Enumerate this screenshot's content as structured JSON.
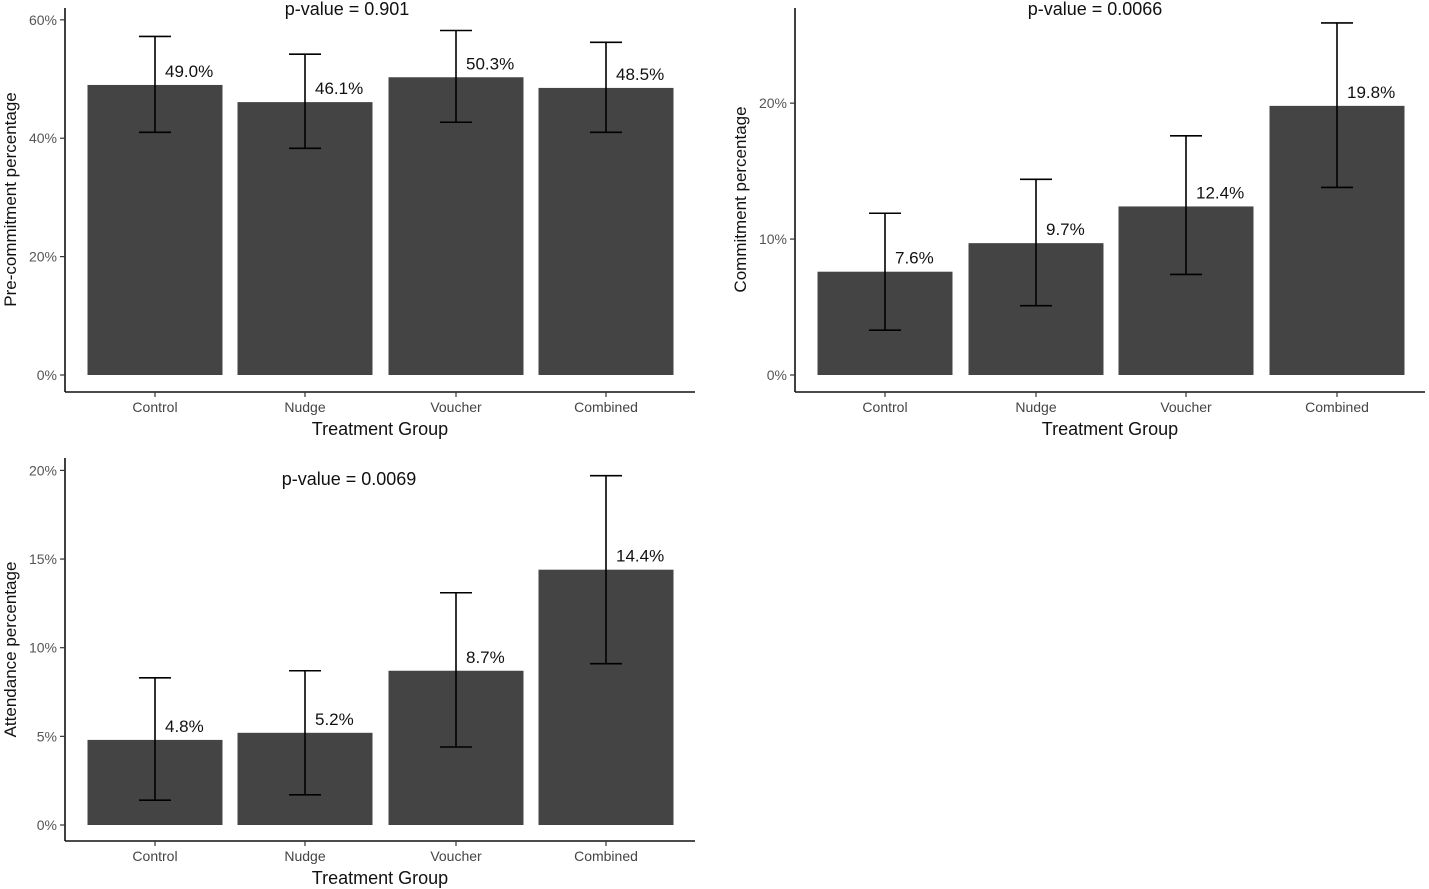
{
  "chart_data": [
    {
      "type": "bar",
      "annotation": "p-value = 0.901",
      "xlabel": "Treatment Group",
      "ylabel": "Pre-commitment percentage",
      "categories": [
        "Control",
        "Nudge",
        "Voucher",
        "Combined"
      ],
      "values": [
        49.0,
        46.1,
        50.3,
        48.5
      ],
      "data_labels": [
        "49.0%",
        "46.1%",
        "50.3%",
        "48.5%"
      ],
      "error_low": [
        41.0,
        38.3,
        42.7,
        41.0
      ],
      "error_high": [
        57.2,
        54.2,
        58.2,
        56.2
      ],
      "yticks": [
        0,
        20,
        40,
        60
      ],
      "ytick_labels": [
        "0%",
        "20%",
        "40%",
        "60%"
      ],
      "ylim": [
        0,
        62
      ],
      "grid": false,
      "bar_color": "#444444"
    },
    {
      "type": "bar",
      "annotation": "p-value = 0.0066",
      "xlabel": "Treatment Group",
      "ylabel": "Commitment percentage",
      "categories": [
        "Control",
        "Nudge",
        "Voucher",
        "Combined"
      ],
      "values": [
        7.6,
        9.7,
        12.4,
        19.8
      ],
      "data_labels": [
        "7.6%",
        "9.7%",
        "12.4%",
        "19.8%"
      ],
      "error_low": [
        3.3,
        5.1,
        7.4,
        13.8
      ],
      "error_high": [
        11.9,
        14.4,
        17.6,
        25.9
      ],
      "yticks": [
        0,
        10,
        20
      ],
      "ytick_labels": [
        "0%",
        "10%",
        "20%"
      ],
      "ylim": [
        0,
        27
      ],
      "grid": false,
      "bar_color": "#444444"
    },
    {
      "type": "bar",
      "annotation": "p-value = 0.0069",
      "xlabel": "Treatment Group",
      "ylabel": "Attendance percentage",
      "categories": [
        "Control",
        "Nudge",
        "Voucher",
        "Combined"
      ],
      "values": [
        4.8,
        5.2,
        8.7,
        14.4
      ],
      "data_labels": [
        "4.8%",
        "5.2%",
        "8.7%",
        "14.4%"
      ],
      "error_low": [
        1.4,
        1.7,
        4.4,
        9.1
      ],
      "error_high": [
        8.3,
        8.7,
        13.1,
        19.7
      ],
      "yticks": [
        0,
        5,
        10,
        15,
        20
      ],
      "ytick_labels": [
        "0%",
        "5%",
        "10%",
        "15%",
        "20%"
      ],
      "ylim": [
        0,
        20.7
      ],
      "grid": false,
      "bar_color": "#444444"
    }
  ]
}
